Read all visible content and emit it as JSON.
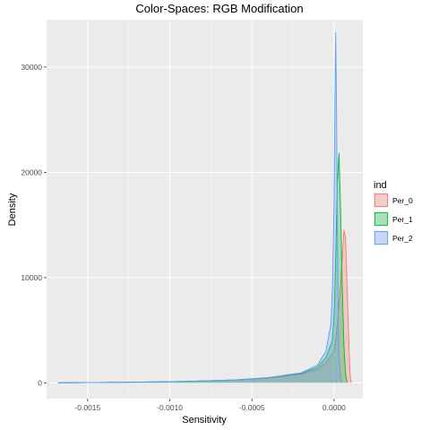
{
  "chart_data": {
    "type": "area",
    "subtype": "density",
    "title": "Color-Spaces: RGB Modification",
    "xlabel": "Sensitivity",
    "ylabel": "Density",
    "xlim": [
      -0.00175,
      0.000175
    ],
    "ylim": [
      -1500,
      34500
    ],
    "x_ticks": [
      {
        "value": -0.0015,
        "label": "-0.0015"
      },
      {
        "value": -0.001,
        "label": "-0.0010"
      },
      {
        "value": -0.0005,
        "label": "-0.0005"
      },
      {
        "value": 0.0,
        "label": "0.0000"
      }
    ],
    "y_ticks": [
      {
        "value": 0,
        "label": "0"
      },
      {
        "value": 10000,
        "label": "10000"
      },
      {
        "value": 20000,
        "label": "20000"
      },
      {
        "value": 30000,
        "label": "30000"
      }
    ],
    "grid": true,
    "legend": {
      "title": "ind",
      "position": "right"
    },
    "series": [
      {
        "name": "Per_0",
        "stroke": "#F8766D",
        "fill": "#F8766D",
        "x": [
          -0.00168,
          -0.0015,
          -0.0012,
          -0.0009,
          -0.0006,
          -0.0004,
          -0.0002,
          -0.0001,
          -5e-05,
          0.0,
          2e-05,
          4e-05,
          6e-05,
          7e-05,
          8e-05,
          9e-05,
          9.5e-05,
          0.0001,
          0.000105
        ],
        "y": [
          0,
          30,
          60,
          130,
          260,
          450,
          820,
          1300,
          1900,
          3000,
          5500,
          9500,
          14500,
          13800,
          9000,
          4000,
          1500,
          400,
          0
        ]
      },
      {
        "name": "Per_1",
        "stroke": "#00BA38",
        "fill": "#00BA38",
        "x": [
          -0.00168,
          -0.0015,
          -0.0012,
          -0.0009,
          -0.0006,
          -0.0004,
          -0.0002,
          -0.0001,
          -5e-05,
          -1e-05,
          0.0,
          1e-05,
          2e-05,
          3e-05,
          4e-05,
          5e-05,
          6e-05,
          7e-05,
          8e-05
        ],
        "y": [
          0,
          30,
          70,
          140,
          280,
          480,
          900,
          1500,
          2400,
          4000,
          6500,
          12000,
          19000,
          21800,
          16500,
          9000,
          3500,
          800,
          0
        ]
      },
      {
        "name": "Per_2",
        "stroke": "#619CFF",
        "fill": "#619CFF",
        "x": [
          -0.00168,
          -0.0015,
          -0.0012,
          -0.0009,
          -0.0006,
          -0.0004,
          -0.0002,
          -0.0001,
          -5e-05,
          -2e-05,
          -1e-05,
          0.0,
          5e-06,
          1e-05,
          1.5e-05,
          2e-05,
          2.5e-05,
          3e-05,
          4e-05,
          5e-05
        ],
        "y": [
          0,
          30,
          70,
          140,
          280,
          500,
          950,
          1700,
          3000,
          5500,
          9000,
          17000,
          27000,
          33300,
          26000,
          15000,
          7000,
          2500,
          400,
          0
        ]
      }
    ]
  }
}
